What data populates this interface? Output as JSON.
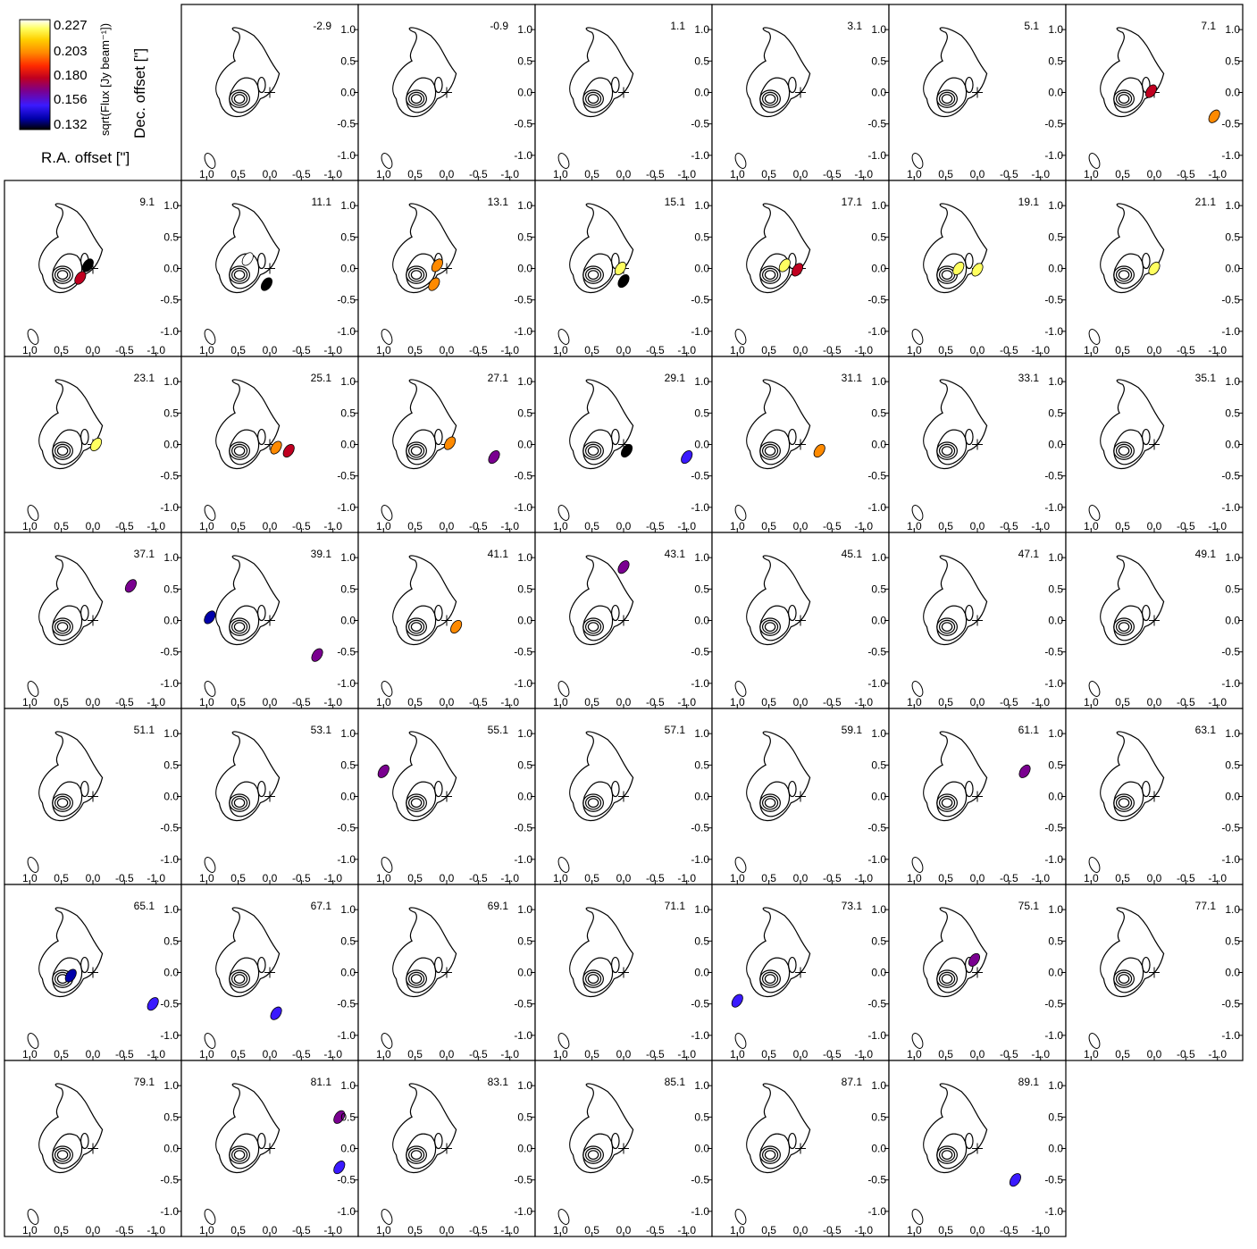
{
  "chart_data": {
    "type": "heatmap",
    "description_layout": "channel-map grid, 7 columns x 7 rows",
    "colorbar": {
      "label": "sqrt(Flux [Jy beam⁻¹])",
      "ticks": [
        "0.227",
        "0.203",
        "0.180",
        "0.156",
        "0.132"
      ],
      "range": [
        0.132,
        0.235
      ],
      "colormap": [
        "#000000",
        "#0000aa",
        "#3a1aff",
        "#7a0090",
        "#c00020",
        "#ff2a00",
        "#ff8a00",
        "#ffd000",
        "#ffff60",
        "#ffffff"
      ]
    },
    "xlabel": "R.A. offset [\"]",
    "ylabel": "Dec. offset [\"]",
    "xticks": [
      "1.0",
      "0.5",
      "0.0",
      "-0.5",
      "-1.0"
    ],
    "yticks": [
      "1.0",
      "0.5",
      "0.0",
      "-0.5",
      "-1.0"
    ],
    "xlim": [
      1.4,
      -1.4
    ],
    "ylim": [
      -1.4,
      1.4
    ],
    "channels": [
      "-2.9",
      "-0.9",
      "1.1",
      "3.1",
      "5.1",
      "7.1",
      "9.1",
      "11.1",
      "13.1",
      "15.1",
      "17.1",
      "19.1",
      "21.1",
      "23.1",
      "25.1",
      "27.1",
      "29.1",
      "31.1",
      "33.1",
      "35.1",
      "37.1",
      "39.1",
      "41.1",
      "43.1",
      "45.1",
      "47.1",
      "49.1",
      "51.1",
      "53.1",
      "55.1",
      "57.1",
      "59.1",
      "61.1",
      "63.1",
      "65.1",
      "67.1",
      "69.1",
      "71.1",
      "73.1",
      "75.1",
      "77.1",
      "79.1",
      "81.1",
      "83.1",
      "85.1",
      "87.1",
      "89.1"
    ],
    "emission_blobs": {
      "7.1": [
        [
          0.05,
          0.02,
          0.18
        ],
        [
          -0.95,
          -0.38,
          0.2
        ]
      ],
      "9.1": [
        [
          0.08,
          0.05,
          0.12
        ],
        [
          0.2,
          -0.15,
          0.18
        ]
      ],
      "11.1": [
        [
          0.35,
          0.15,
          0.24
        ],
        [
          0.05,
          -0.25,
          0.12
        ]
      ],
      "13.1": [
        [
          0.15,
          0.05,
          0.2
        ],
        [
          0.2,
          -0.25,
          0.2
        ]
      ],
      "15.1": [
        [
          0.05,
          0.0,
          0.22
        ],
        [
          0.0,
          -0.2,
          0.1
        ]
      ],
      "17.1": [
        [
          0.25,
          0.05,
          0.22
        ],
        [
          0.05,
          -0.02,
          0.18
        ]
      ],
      "19.1": [
        [
          0.3,
          0.0,
          0.22
        ],
        [
          0.0,
          -0.02,
          0.22
        ]
      ],
      "21.1": [
        [
          0.0,
          0.0,
          0.22
        ]
      ],
      "23.1": [
        [
          -0.05,
          0.0,
          0.22
        ]
      ],
      "25.1": [
        [
          -0.1,
          -0.05,
          0.2
        ],
        [
          -0.3,
          -0.1,
          0.18
        ]
      ],
      "27.1": [
        [
          -0.05,
          0.02,
          0.2
        ],
        [
          -0.75,
          -0.2,
          0.17
        ]
      ],
      "29.1": [
        [
          -0.05,
          -0.1,
          0.12
        ],
        [
          -1.0,
          -0.2,
          0.15
        ]
      ],
      "31.1": [
        [
          -0.3,
          -0.1,
          0.2
        ]
      ],
      "37.1": [
        [
          -0.6,
          0.55,
          0.17
        ]
      ],
      "39.1": [
        [
          -0.75,
          -0.55,
          0.17
        ],
        [
          0.95,
          0.05,
          0.14
        ]
      ],
      "41.1": [
        [
          -0.15,
          -0.1,
          0.2
        ]
      ],
      "43.1": [
        [
          0.0,
          0.85,
          0.17
        ]
      ],
      "55.1": [
        [
          1.0,
          0.4,
          0.17
        ]
      ],
      "61.1": [
        [
          -0.75,
          0.4,
          0.17
        ]
      ],
      "65.1": [
        [
          0.35,
          -0.05,
          0.14
        ],
        [
          -0.95,
          -0.5,
          0.16
        ]
      ],
      "67.1": [
        [
          -0.1,
          -0.65,
          0.16
        ]
      ],
      "73.1": [
        [
          1.0,
          -0.45,
          0.16
        ]
      ],
      "75.1": [
        [
          0.05,
          0.2,
          0.17
        ]
      ],
      "81.1": [
        [
          -1.1,
          0.5,
          0.17
        ],
        [
          -1.1,
          -0.3,
          0.15
        ]
      ],
      "89.1": [
        [
          -0.6,
          -0.5,
          0.16
        ]
      ]
    }
  }
}
